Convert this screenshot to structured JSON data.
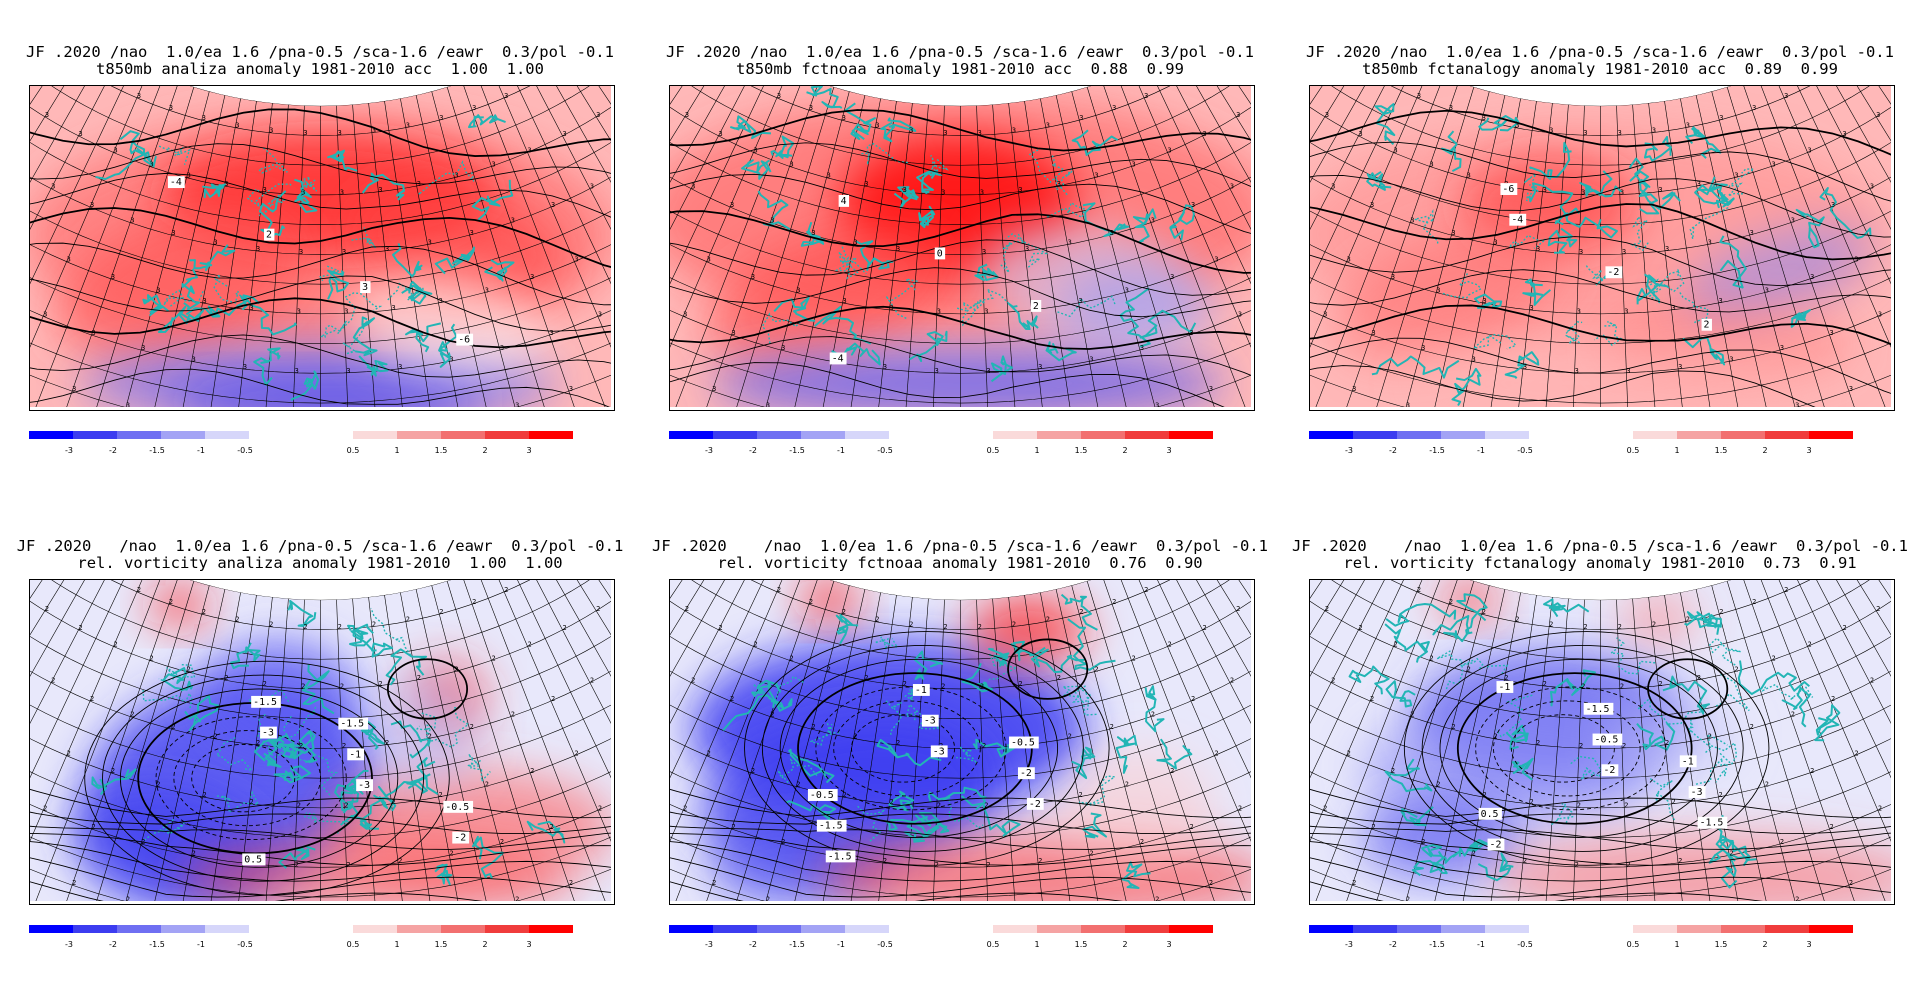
{
  "panels": [
    {
      "line1": "JF .2020 /nao  1.0/ea 1.6 /pna-0.5 /sca-1.6 /eawr  0.3/pol -0.1",
      "line2": "t850mb analiza anomaly 1981-2010 acc  1.00  1.00",
      "variable": "t850mb",
      "source": "analiza",
      "acc": [
        "1.00",
        "1.00"
      ],
      "pattern": "warm",
      "contour_labels": [
        "-4",
        "2",
        "3",
        "-6"
      ]
    },
    {
      "line1": "JF .2020 /nao  1.0/ea 1.6 /pna-0.5 /sca-1.6 /eawr  0.3/pol -0.1",
      "line2": "t850mb fctnoaa anomaly 1981-2010 acc  0.88  0.99",
      "variable": "t850mb",
      "source": "fctnoaa",
      "acc": [
        "0.88",
        "0.99"
      ],
      "pattern": "warm",
      "contour_labels": [
        "4",
        "0",
        "2",
        "-4"
      ]
    },
    {
      "line1": "JF .2020 /nao  1.0/ea 1.6 /pna-0.5 /sca-1.6 /eawr  0.3/pol -0.1",
      "line2": "t850mb fctanalogy anomaly 1981-2010 acc  0.89  0.99",
      "variable": "t850mb",
      "source": "fctanalogy",
      "acc": [
        "0.89",
        "0.99"
      ],
      "pattern": "warm",
      "contour_labels": [
        "-4",
        "-2",
        "2",
        "-6"
      ]
    },
    {
      "line1": "JF .2020   /nao  1.0/ea 1.6 /pna-0.5 /sca-1.6 /eawr  0.3/pol -0.1",
      "line2": "rel. vorticity analiza anomaly 1981-2010  1.00  1.00",
      "variable": "rel. vorticity",
      "source": "analiza",
      "acc": [
        "1.00",
        "1.00"
      ],
      "pattern": "vort",
      "contour_labels": [
        "-3",
        "-3",
        "-2",
        "-1.5",
        "-1",
        "-0.5",
        "0.5",
        "-1.5"
      ]
    },
    {
      "line1": "JF .2020    /nao  1.0/ea 1.6 /pna-0.5 /sca-1.6 /eawr  0.3/pol -0.1",
      "line2": "rel. vorticity fctnoaa anomaly 1981-2010  0.76  0.90",
      "variable": "rel. vorticity",
      "source": "fctnoaa",
      "acc": [
        "0.76",
        "0.90"
      ],
      "pattern": "vort",
      "contour_labels": [
        "-3",
        "-2",
        "-1.5",
        "-3",
        "-2",
        "-1.5",
        "-1",
        "-0.5",
        "-0.5"
      ]
    },
    {
      "line1": "JF .2020    /nao  1.0/ea 1.6 /pna-0.5 /sca-1.6 /eawr  0.3/pol -0.1",
      "line2": "rel. vorticity fctanalogy anomaly 1981-2010  0.73  0.91",
      "variable": "rel. vorticity",
      "source": "fctanalogy",
      "acc": [
        "0.73",
        "0.91"
      ],
      "pattern": "vort",
      "contour_labels": [
        "-2",
        "-1.5",
        "-1",
        "-0.5",
        "-3",
        "-2",
        "-1.5",
        "-1",
        "0.5"
      ]
    }
  ],
  "colorbar": {
    "labels_neg": [
      "-3",
      "-2",
      "-1.5",
      "-1",
      "-0.5"
    ],
    "labels_pos": [
      "0.5",
      "1",
      "1.5",
      "2",
      "3"
    ],
    "colors_neg": [
      "#0000ff",
      "#3c3cf0",
      "#6f6ff2",
      "#a3a3f5",
      "#d6d6fa"
    ],
    "colors_pos": [
      "#fadada",
      "#f5a3a3",
      "#f27070",
      "#f03c3c",
      "#ff0000"
    ]
  },
  "colors": {
    "coastline": "#22b5b5",
    "contour": "#000000",
    "frame": "#000000"
  }
}
